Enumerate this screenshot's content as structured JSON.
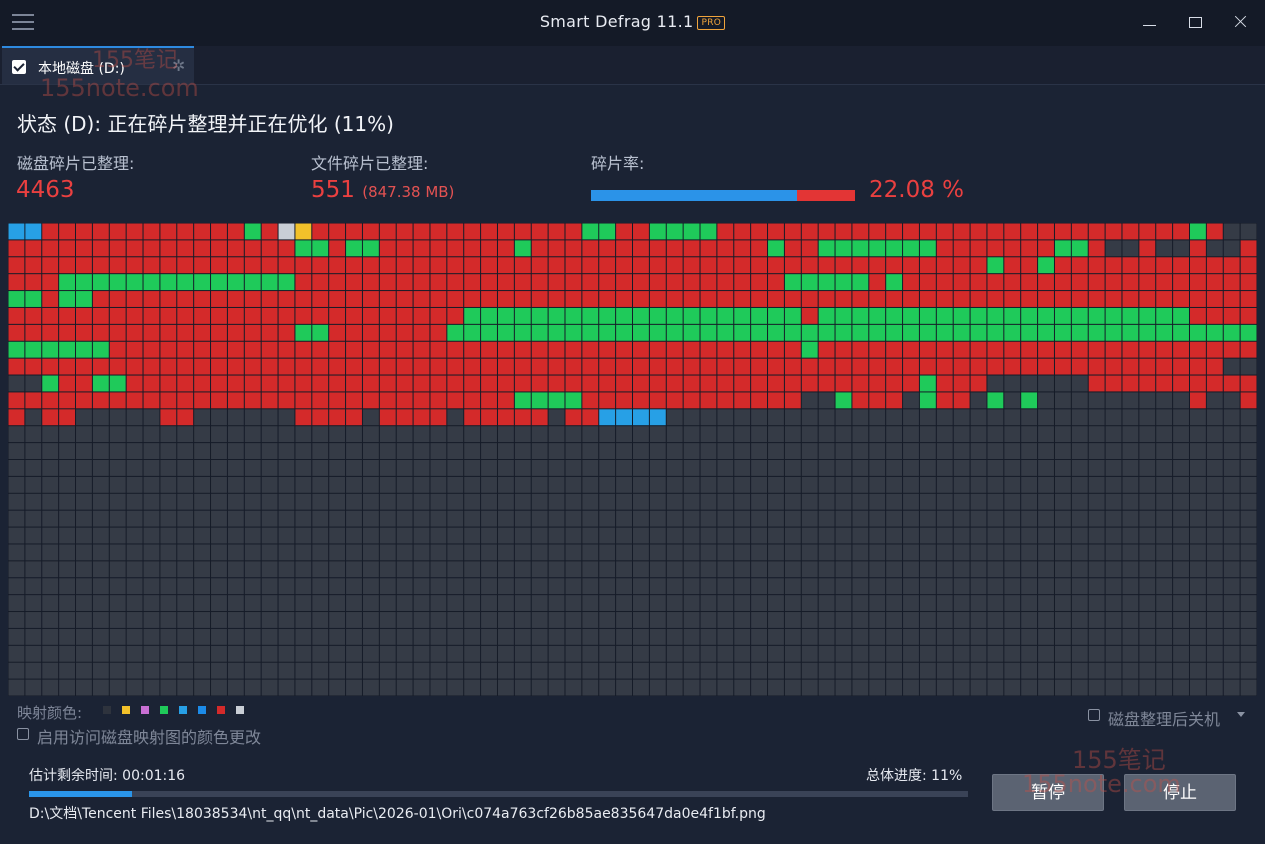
{
  "window": {
    "title": "Smart Defrag 11.1",
    "badge": "PRO",
    "menu_icon": "hamburger-menu-icon",
    "controls": [
      "minimize-icon",
      "maximize-icon",
      "close-icon"
    ]
  },
  "tab": {
    "checked": true,
    "label": "本地磁盘 (D:)",
    "icon": "gear-icon"
  },
  "status": {
    "title": "状态 (D): 正在碎片整理并正在优化 (11%)"
  },
  "stats": {
    "disk_label": "磁盘碎片已整理:",
    "disk_value": "4463",
    "files_label": "文件碎片已整理:",
    "files_value": "551",
    "files_size": "(847.38 MB)",
    "frag_label": "碎片率:",
    "frag_value": "22.08 %",
    "frag_bar": {
      "blue_fraction": 0.78,
      "red_fraction": 0.22
    }
  },
  "colors": {
    "bg": "#1b2334",
    "accent_blue": "#2b93e8",
    "accent_red": "#e33535",
    "fragmented": "#d42a2a",
    "free": "#353b46",
    "green": "#1fca5a",
    "processing": "#27a0e6",
    "defragmented_blue": "#1c8be8",
    "yellow": "#f2c12a",
    "gray": "#c9ced6"
  },
  "legend": {
    "label": "映射颜色:",
    "swatches": [
      "#2e333d",
      "#f2c12a",
      "#c86fd3",
      "#1fca5a",
      "#27a0e6",
      "#1c8be8",
      "#d42a2a",
      "#c9ced6"
    ]
  },
  "options": {
    "map_color_change": "启用访问磁盘映射图的颜色更改",
    "shutdown_after": "磁盘整理后关机"
  },
  "progress": {
    "eta_label": "估计剩余时间: 00:01:16",
    "overall_label": "总体进度: 11%",
    "overall_fraction": 0.11,
    "current_file": "D:\\文档\\Tencent Files\\18038534\\nt_qq\\nt_data\\Pic\\2026-01\\Ori\\c074a763cf26b85ae835647da0e4f1bf.png"
  },
  "buttons": {
    "pause": "暂停",
    "stop": "停止"
  },
  "watermarks": [
    "155笔记",
    "155note.com",
    "155笔记",
    "155note.com"
  ],
  "disk_map": {
    "cols": 74,
    "rows": 28,
    "legend_codes": "R=fragmented, G=defragmented, D=free/empty, B=processing, Y=yellow, W=gray",
    "rows_data": [
      "BBRRRRRRRRRRRRGRWYRRRRRRRRRRRRRRRRGGRRGGGGRRRRRRRRRRRRRRRRRRRRRRRRRRRRGR",
      "RRRRRRRRRRRRRRRRRGGRGGRRRRRRRRGRRRRRRRRRRRRRRGRRGGGGGGGRRRRRRRGGRDDRDDRDDR",
      "RRRRRRRRRRRRRRRRRRRRRRRRRRRRRRRRRRRRRRRRRRRRRRRRRRRRRRRRRRGRRGRRRRRRRRRRRR",
      "RRRGGGGGGGGGGGGGGRRRRRRRRRRRRRRRRRRRRRRRRRRRRRGGGGGRGRRRRRRRRRRRRRRRRRRRRR",
      "GGRGGRRRRRRRRRRRRRRRRRRRRRRRRRRRRRRRRRRRRRRRRRRRRRRRRRRRRRRRRRRRRRRRRRRRRR",
      "RRRRRRRRRRRRRRRRRRRRRRRRRRRGGGGGGGGGGGGGGGGGGGGRGGGGGGGGGGGGGGGGGGGGGGRRRR",
      "RRRRRRRRRRRRRRRRRGGRRRRRRRGGGGGGGGGGGGGGGGGGGGGGGGGGGGGGGGGGGGGGGGGGGGGGGG",
      "GGGGGGRRRRRRRRRRRRRRRRRRRRRRRRRRRRRRRRRRRRRRRRRGRRRRRRRRRRRRRRRRRRRRRRRRRR",
      "RRRRRRRRRRRRRRRRRRRRRRRRRRRRRRRRRRRRRRRRRRRRRRRRRRRRRRRRRRRRRRRRRRRRRRRRDDD",
      "DDGRRGGRRRRRRRRRRRRRRRRRRRRRRRRRRRRRRRRRRRRRRRRRRRRRRRGRRRDDDDDDRRRRRRRRRR",
      "RRRRRRRRRRRRRRRRRRRRRRRRRRRRRRGGGGRRRRRRRRRRRRRDDGRRRDGRRDGDGDDDDDDDDDRDDRRG",
      "RDRRDDDDDRRDDDDDDRRRRDRRRRDRRRRRDRRBBBBDDDDDDDDDDDDDDDDDDDDDDDDDDDDDDDDDDDD"
    ]
  }
}
